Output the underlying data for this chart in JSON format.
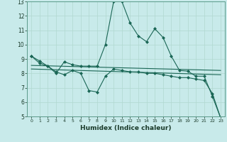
{
  "title": "",
  "xlabel": "Humidex (Indice chaleur)",
  "xlim": [
    -0.5,
    23.5
  ],
  "ylim": [
    5,
    13
  ],
  "yticks": [
    5,
    6,
    7,
    8,
    9,
    10,
    11,
    12,
    13
  ],
  "xticks": [
    0,
    1,
    2,
    3,
    4,
    5,
    6,
    7,
    8,
    9,
    10,
    11,
    12,
    13,
    14,
    15,
    16,
    17,
    18,
    19,
    20,
    21,
    22,
    23
  ],
  "bg_color": "#c8eaea",
  "line_color": "#1a6655",
  "line1_x": [
    0,
    1,
    2,
    3,
    4,
    5,
    6,
    7,
    8,
    9,
    10,
    11,
    12,
    13,
    14,
    15,
    16,
    17,
    18,
    19,
    20,
    21,
    22,
    23
  ],
  "line1_y": [
    9.2,
    8.85,
    8.5,
    8.0,
    8.8,
    8.6,
    8.5,
    8.5,
    8.5,
    10.0,
    13.0,
    13.0,
    11.5,
    10.6,
    10.2,
    11.1,
    10.5,
    9.2,
    8.2,
    8.15,
    7.8,
    7.8,
    6.4,
    4.9
  ],
  "line2_x": [
    0,
    1,
    2,
    3,
    4,
    5,
    6,
    7,
    8,
    9,
    10,
    11,
    12,
    13,
    14,
    15,
    16,
    17,
    18,
    19,
    20,
    21,
    22,
    23
  ],
  "line2_y": [
    9.2,
    8.7,
    8.5,
    8.1,
    7.9,
    8.2,
    8.0,
    6.8,
    6.7,
    7.8,
    8.3,
    8.2,
    8.1,
    8.1,
    8.0,
    8.0,
    7.9,
    7.8,
    7.7,
    7.7,
    7.6,
    7.5,
    6.6,
    4.9
  ],
  "line3_x": [
    0,
    23
  ],
  "line3_y": [
    8.55,
    8.2
  ],
  "line4_x": [
    0,
    23
  ],
  "line4_y": [
    8.3,
    7.9
  ]
}
